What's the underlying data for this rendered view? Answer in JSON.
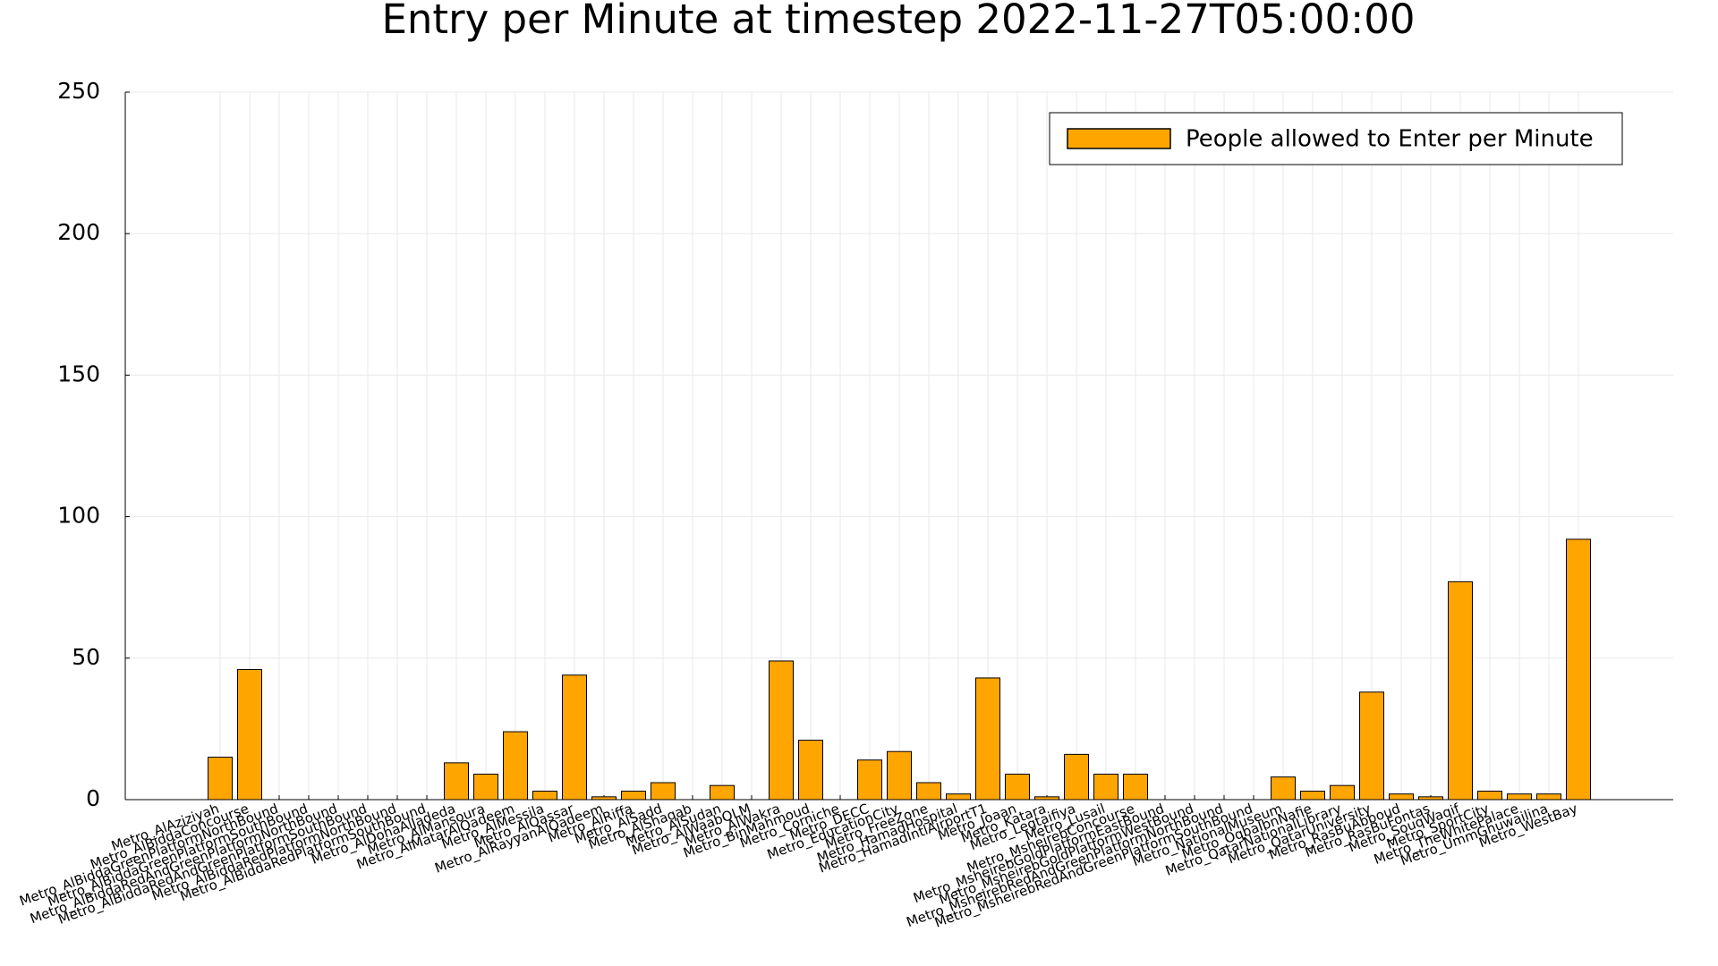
{
  "chart_data": {
    "type": "bar",
    "title": "Entry per Minute at timestep 2022-11-27T05:00:00",
    "categories": [
      "Metro_AlAziziyah",
      "Metro_AlBiddaConcourse",
      "Metro_AlBiddaGreenPlatformNorthBound",
      "Metro_AlBiddaGreenPlatformSouthBound",
      "Metro_AlBiddaRedAndGreenPlatformNorthBound",
      "Metro_AlBiddaRedAndGreenPlatformSouthBound",
      "Metro_AlBiddaRedPlatformNorthBound",
      "Metro_AlBiddaRedPlatformSouthBound",
      "Metro_AlDohaAlJadeda",
      "Metro_AlMansoura",
      "Metro_AlMatarAlQadeem",
      "Metro_AlMessila",
      "Metro_AlQassar",
      "Metro_AlRayyanAlQadeem",
      "Metro_AlRiffa",
      "Metro_AlSadd",
      "Metro_AlShaqab",
      "Metro_AlSudan",
      "Metro_AlWaabQLM",
      "Metro_AlWakra",
      "Metro_BinMahmoud",
      "Metro_Corniche",
      "Metro_DECC",
      "Metro_EducationCity",
      "Metro_FreeZone",
      "Metro_HamadHospital",
      "Metro_HamadIntlAirportT1",
      "Metro_Joaan",
      "Metro_Katara",
      "Metro_Legtaifiya",
      "Metro_Lusail",
      "Metro_MsheirebConcourse",
      "Metro_MsheirebGoldPlatformEastBound",
      "Metro_MsheirebGoldPlatformWestBound",
      "Metro_MsheirebRedAndGreenPlatformNorthBound",
      "Metro_MsheirebRedAndGreenPlatformSouthBound",
      "Metro_NationalMuseum",
      "Metro_OqbaIbnNafie",
      "Metro_QatarNationalLibrary",
      "Metro_QatarUniversity",
      "Metro_RasBuAbboud",
      "Metro_RasBuFontas",
      "Metro_SouqWaqif",
      "Metro_SportCity",
      "Metro_TheWhitePalace",
      "Metro_UmmGhuwailina",
      "Metro_WestBay"
    ],
    "series": [
      {
        "name": "People allowed to Enter per Minute",
        "color": "#ffa500",
        "values": [
          15,
          46,
          0,
          0,
          0,
          0,
          0,
          0,
          13,
          9,
          24,
          3,
          44,
          1,
          3,
          6,
          0,
          5,
          0,
          49,
          21,
          0,
          14,
          17,
          6,
          2,
          43,
          9,
          1,
          16,
          9,
          9,
          0,
          0,
          0,
          0,
          8,
          3,
          5,
          38,
          2,
          1,
          77,
          3,
          2,
          2,
          92
        ]
      }
    ],
    "ylim": [
      0,
      250
    ],
    "yticks": [
      0,
      50,
      100,
      150,
      200,
      250
    ],
    "grid": true,
    "legend": "top-right"
  }
}
